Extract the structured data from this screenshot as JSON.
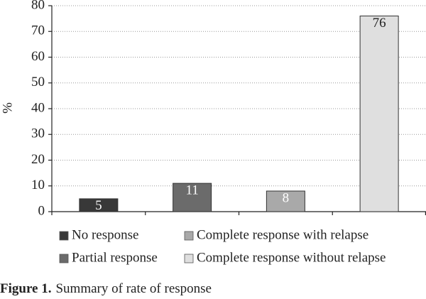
{
  "chart_data": {
    "type": "bar",
    "y_label": "%",
    "categories": [
      "No response",
      "Partial response",
      "Complete response with relapse",
      "Complete response without relapse"
    ],
    "values": [
      5,
      11,
      8,
      76
    ],
    "colors": [
      "#383838",
      "#6b6b6b",
      "#a9a9a9",
      "#dfdfdf"
    ],
    "value_label_colors": [
      "#ffffff",
      "#ffffff",
      "#ffffff",
      "#222222"
    ],
    "ylim": [
      0,
      80
    ],
    "yticks": [
      0,
      10,
      20,
      30,
      40,
      50,
      60,
      70,
      80
    ],
    "grid": true,
    "caption_label": "Figure 1.",
    "caption": "Summary of rate of response"
  }
}
